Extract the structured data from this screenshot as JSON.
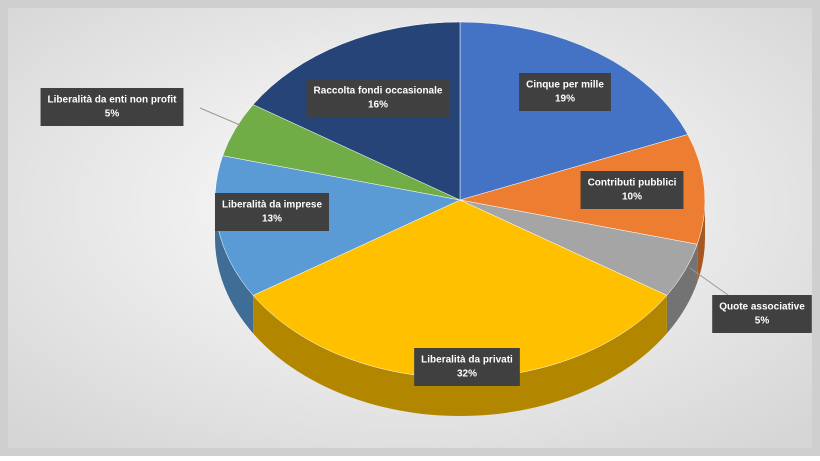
{
  "chart_data": {
    "type": "pie3d",
    "categories": [
      "Cinque per mille",
      "Contributi pubblici",
      "Quote associative",
      "Liberalità da privati",
      "Liberalità da imprese",
      "Liberalità da enti non profit",
      "Raccolta fondi occasionale"
    ],
    "values": [
      19,
      10,
      5,
      32,
      13,
      5,
      16
    ],
    "value_labels": [
      "19%",
      "10%",
      "5%",
      "32%",
      "13%",
      "5%",
      "16%"
    ],
    "colors": [
      "#4472c4",
      "#ed7d31",
      "#a5a5a5",
      "#ffc000",
      "#5b9bd5",
      "#70ad47",
      "#264478"
    ]
  }
}
